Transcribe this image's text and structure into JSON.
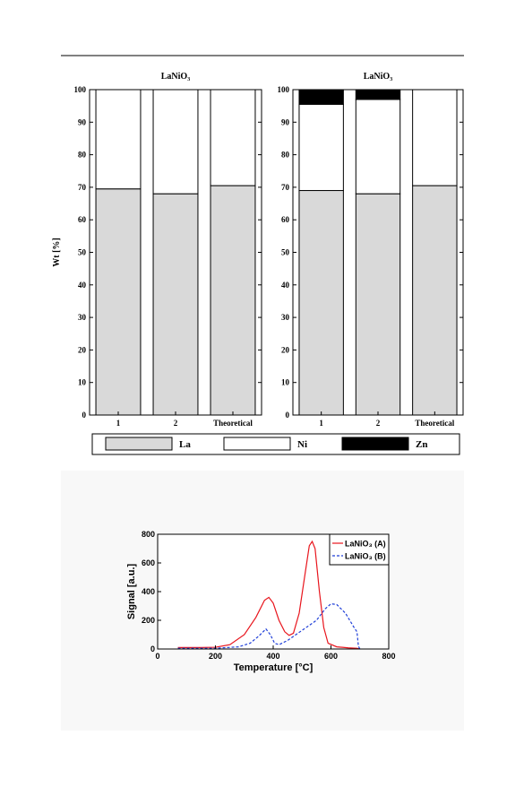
{
  "chart_data": [
    {
      "type": "bar",
      "title": "LaNiO₃",
      "ylabel": "Wt [%]",
      "categories": [
        "1",
        "2",
        "Theoretical"
      ],
      "series": [
        {
          "color": "#d9d9d9",
          "values": [
            69.5,
            68,
            70.5
          ]
        },
        {
          "color": "#ffffff",
          "values": [
            30.5,
            32,
            29.5
          ]
        }
      ],
      "ylim": [
        0,
        100
      ],
      "yticks": [
        0,
        10,
        20,
        30,
        40,
        50,
        60,
        70,
        80,
        90,
        100
      ]
    },
    {
      "type": "bar",
      "title": "LaNiO₃",
      "categories": [
        "1",
        "2",
        "Theoretical"
      ],
      "series": [
        {
          "name": "La",
          "color": "#d9d9d9",
          "values": [
            69,
            68,
            70.5
          ]
        },
        {
          "name": "Ni",
          "color": "#ffffff",
          "values": [
            26.5,
            29,
            29.5
          ]
        },
        {
          "name": "Zn",
          "color": "#000000",
          "values": [
            4.5,
            3,
            0
          ]
        }
      ],
      "ylim": [
        0,
        100
      ],
      "yticks": [
        0,
        10,
        20,
        30,
        40,
        50,
        60,
        70,
        80,
        90,
        100
      ]
    },
    {
      "type": "line",
      "xlabel": "Temperature [°C]",
      "ylabel": "Signal [a.u.]",
      "xlim": [
        0,
        800
      ],
      "xticks": [
        0,
        200,
        400,
        600,
        800
      ],
      "ylim": [
        0,
        800
      ],
      "yticks": [
        0,
        200,
        400,
        600,
        800
      ],
      "legend": "upper right",
      "series": [
        {
          "name": "LaNiO₃ (A)",
          "color": "#e8141c",
          "dash": false,
          "x": [
            70,
            150,
            200,
            250,
            300,
            340,
            370,
            385,
            400,
            420,
            440,
            455,
            470,
            490,
            510,
            525,
            535,
            545,
            560,
            575,
            590,
            620,
            660,
            690,
            700
          ],
          "values": [
            10,
            10,
            12,
            30,
            100,
            220,
            340,
            360,
            320,
            200,
            120,
            95,
            110,
            250,
            520,
            720,
            750,
            700,
            400,
            150,
            40,
            15,
            8,
            5,
            0
          ]
        },
        {
          "name": "LaNiO₃ (B)",
          "color": "#1f3fd8",
          "dash": true,
          "x": [
            70,
            200,
            280,
            320,
            350,
            375,
            390,
            405,
            420,
            450,
            500,
            550,
            580,
            600,
            620,
            650,
            680,
            690,
            695,
            700
          ],
          "values": [
            5,
            5,
            15,
            40,
            90,
            140,
            100,
            40,
            30,
            60,
            130,
            200,
            280,
            315,
            310,
            250,
            150,
            120,
            20,
            0
          ]
        }
      ]
    }
  ]
}
